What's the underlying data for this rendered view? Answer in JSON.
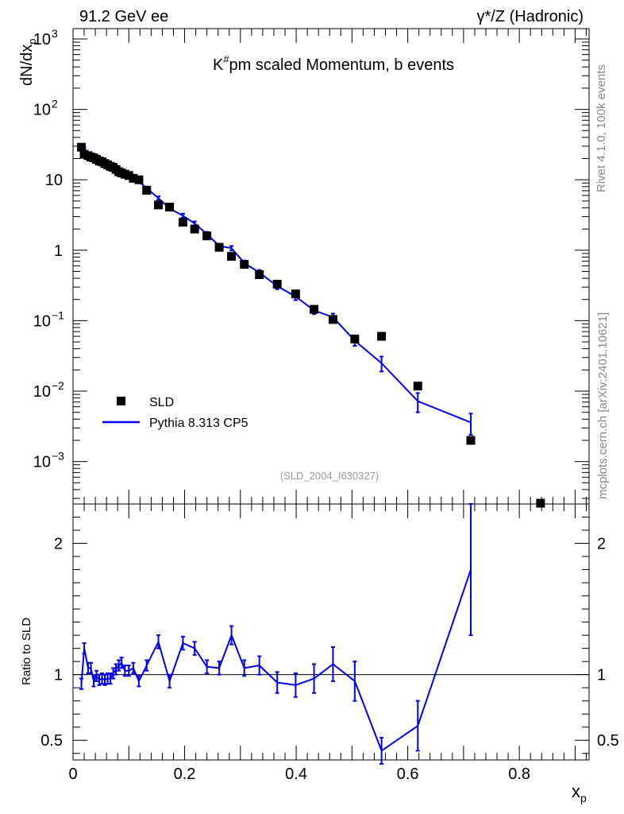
{
  "header": {
    "left": "91.2 GeV ee",
    "right": "γ*/Z (Hadronic)"
  },
  "side": {
    "rivet": "Rivet 4.1.0,  100k events",
    "mcplots": "mcplots.cern.ch [arXiv:2401.10621]"
  },
  "colors": {
    "data": "#000000",
    "mc": "#0000ee",
    "axis": "#000000"
  },
  "chart_data": [
    {
      "type": "scatter",
      "panel": "main",
      "title": "K#pm scaled Momentum, b events",
      "title_parts": {
        "base": "K",
        "sup": "#",
        "rest": "pm scaled Momentum, b events"
      },
      "watermark": "(SLD_2004_I630327)",
      "ylabel": "dN/dx",
      "ylabel_sub": "p",
      "yscale": "log",
      "ylim": [
        0.00025,
        1400
      ],
      "xlim": [
        0,
        0.925
      ],
      "yticks": [
        {
          "value": 0.001,
          "base": "10",
          "exp": "−3"
        },
        {
          "value": 0.01,
          "base": "10",
          "exp": "−2"
        },
        {
          "value": 0.1,
          "base": "10",
          "exp": "−1"
        },
        {
          "value": 1,
          "base": "1",
          "exp": ""
        },
        {
          "value": 10,
          "base": "10",
          "exp": ""
        },
        {
          "value": 100,
          "base": "10",
          "exp": "2"
        },
        {
          "value": 1000,
          "base": "10",
          "exp": "3"
        }
      ],
      "legend": {
        "position": "lower-left",
        "entries": [
          "SLD",
          "Pythia 8.313 CP5"
        ]
      },
      "series": [
        {
          "name": "SLD",
          "style": "markers",
          "x": [
            0.015,
            0.02,
            0.027,
            0.032,
            0.037,
            0.042,
            0.047,
            0.052,
            0.057,
            0.062,
            0.067,
            0.072,
            0.077,
            0.082,
            0.087,
            0.093,
            0.1,
            0.108,
            0.118,
            0.132,
            0.153,
            0.173,
            0.197,
            0.218,
            0.24,
            0.262,
            0.284,
            0.307,
            0.334,
            0.366,
            0.399,
            0.432,
            0.466,
            0.505,
            0.553,
            0.618,
            0.713,
            0.838
          ],
          "y": [
            29,
            23,
            22,
            21,
            20.5,
            19.5,
            18.5,
            18,
            17,
            16.3,
            15.5,
            15,
            14,
            13,
            12.5,
            12,
            11.5,
            10.5,
            10,
            7.1,
            4.4,
            4.1,
            2.5,
            2.0,
            1.6,
            1.1,
            0.82,
            0.63,
            0.45,
            0.33,
            0.24,
            0.145,
            0.104,
            0.055,
            0.06,
            0.0118,
            0.002,
            0.00024
          ]
        },
        {
          "name": "Pythia 8.313 CP5",
          "style": "line",
          "x": [
            0.015,
            0.02,
            0.027,
            0.032,
            0.037,
            0.042,
            0.047,
            0.052,
            0.057,
            0.062,
            0.067,
            0.072,
            0.077,
            0.082,
            0.087,
            0.093,
            0.1,
            0.108,
            0.118,
            0.132,
            0.153,
            0.173,
            0.197,
            0.218,
            0.24,
            0.262,
            0.284,
            0.307,
            0.334,
            0.366,
            0.399,
            0.432,
            0.466,
            0.505,
            0.553,
            0.618,
            0.713
          ],
          "y": [
            27,
            27.5,
            23,
            22,
            19.5,
            19.3,
            17.8,
            17.5,
            16.3,
            15.8,
            15.1,
            15.2,
            14.5,
            13.9,
            13.6,
            12.3,
            11.8,
            11.0,
            9.5,
            7.6,
            5.5,
            3.9,
            3.1,
            2.4,
            1.7,
            1.15,
            1.07,
            0.66,
            0.48,
            0.31,
            0.22,
            0.14,
            0.112,
            0.052,
            0.025,
            0.0072,
            0.0036
          ],
          "err": [
            1.2,
            1.2,
            1.0,
            1.0,
            0.9,
            0.9,
            0.8,
            0.8,
            0.8,
            0.7,
            0.7,
            0.7,
            0.7,
            0.7,
            0.6,
            0.6,
            0.6,
            0.5,
            0.5,
            0.4,
            0.3,
            0.25,
            0.2,
            0.16,
            0.12,
            0.09,
            0.08,
            0.055,
            0.045,
            0.03,
            0.024,
            0.016,
            0.014,
            0.008,
            0.006,
            0.0022,
            0.0012
          ]
        }
      ]
    },
    {
      "type": "line",
      "panel": "ratio",
      "ylabel": "Ratio to SLD",
      "xlabel": "x",
      "xlabel_sub": "p",
      "ylim": [
        0.35,
        2.3
      ],
      "xlim": [
        0,
        0.925
      ],
      "yticks": [
        0.5,
        1,
        2
      ],
      "ytick_labels": [
        "0.5",
        "1",
        "2"
      ],
      "xticks": [
        0,
        0.2,
        0.4,
        0.6,
        0.8
      ],
      "xtick_labels": [
        "0",
        "0.2",
        "0.4",
        "0.6",
        "0.8"
      ],
      "reference_line": 1,
      "series": [
        {
          "name": "Pythia 8.313 CP5 / SLD",
          "x": [
            0.015,
            0.02,
            0.027,
            0.032,
            0.037,
            0.042,
            0.047,
            0.052,
            0.057,
            0.062,
            0.067,
            0.072,
            0.077,
            0.082,
            0.087,
            0.093,
            0.1,
            0.108,
            0.118,
            0.132,
            0.153,
            0.173,
            0.197,
            0.218,
            0.24,
            0.262,
            0.284,
            0.307,
            0.334,
            0.366,
            0.399,
            0.432,
            0.466,
            0.505,
            0.553,
            0.618,
            0.713
          ],
          "y": [
            0.93,
            1.2,
            1.05,
            1.05,
            0.95,
            0.99,
            0.96,
            0.97,
            0.96,
            0.97,
            0.97,
            1.01,
            1.04,
            1.07,
            1.09,
            1.03,
            1.03,
            1.05,
            0.95,
            1.07,
            1.25,
            0.95,
            1.24,
            1.2,
            1.06,
            1.05,
            1.3,
            1.05,
            1.07,
            0.94,
            0.92,
            0.97,
            1.08,
            0.95,
            0.42,
            0.61,
            1.8
          ],
          "err": [
            0.04,
            0.04,
            0.04,
            0.04,
            0.04,
            0.04,
            0.04,
            0.04,
            0.04,
            0.04,
            0.04,
            0.04,
            0.04,
            0.04,
            0.04,
            0.04,
            0.04,
            0.04,
            0.04,
            0.04,
            0.05,
            0.05,
            0.05,
            0.05,
            0.05,
            0.05,
            0.07,
            0.06,
            0.07,
            0.08,
            0.09,
            0.11,
            0.13,
            0.15,
            0.1,
            0.19,
            0.5
          ]
        }
      ]
    }
  ]
}
